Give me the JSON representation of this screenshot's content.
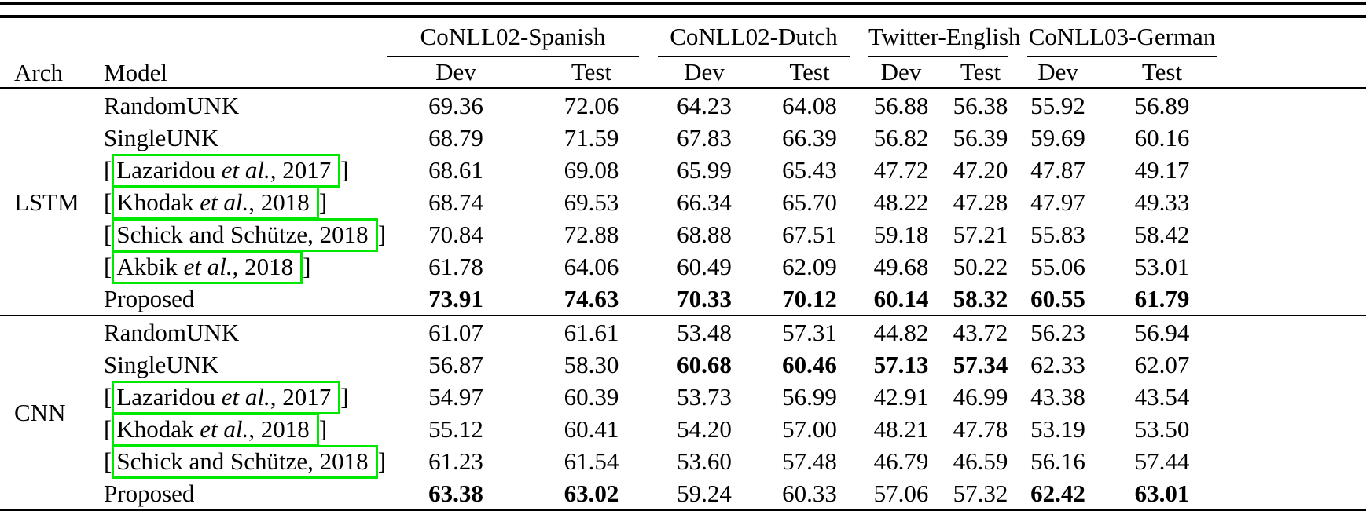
{
  "table": {
    "columns": {
      "arch": "Arch",
      "model": "Model"
    },
    "brackets": {
      "open": "[",
      "close": "]"
    },
    "citation_box_color": "#00e800",
    "groups": [
      {
        "label": "CoNLL02-Spanish",
        "dev": "Dev",
        "test": "Test"
      },
      {
        "label": "CoNLL02-Dutch",
        "dev": "Dev",
        "test": "Test"
      },
      {
        "label": "Twitter-English",
        "dev": "Dev",
        "test": "Test"
      },
      {
        "label": "CoNLL03-German",
        "dev": "Dev",
        "test": "Test"
      }
    ],
    "sections": [
      {
        "arch": "LSTM",
        "rows": [
          {
            "boxed": false,
            "segments": [
              {
                "t": "RandomUNK",
                "i": false
              }
            ],
            "values": [
              "69.36",
              "72.06",
              "64.23",
              "64.08",
              "56.88",
              "56.38",
              "55.92",
              "56.89"
            ],
            "bold": []
          },
          {
            "boxed": false,
            "segments": [
              {
                "t": "SingleUNK",
                "i": false
              }
            ],
            "values": [
              "68.79",
              "71.59",
              "67.83",
              "66.39",
              "56.82",
              "56.39",
              "59.69",
              "60.16"
            ],
            "bold": []
          },
          {
            "boxed": true,
            "segments": [
              {
                "t": "Lazaridou ",
                "i": false
              },
              {
                "t": "et al.",
                "i": true
              },
              {
                "t": ", 2017",
                "i": false
              }
            ],
            "values": [
              "68.61",
              "69.08",
              "65.99",
              "65.43",
              "47.72",
              "47.20",
              "47.87",
              "49.17"
            ],
            "bold": []
          },
          {
            "boxed": true,
            "segments": [
              {
                "t": "Khodak ",
                "i": false
              },
              {
                "t": "et al.",
                "i": true
              },
              {
                "t": ", 2018",
                "i": false
              }
            ],
            "values": [
              "68.74",
              "69.53",
              "66.34",
              "65.70",
              "48.22",
              "47.28",
              "47.97",
              "49.33"
            ],
            "bold": []
          },
          {
            "boxed": true,
            "segments": [
              {
                "t": "Schick and Schütze, 2018",
                "i": false
              }
            ],
            "values": [
              "70.84",
              "72.88",
              "68.88",
              "67.51",
              "59.18",
              "57.21",
              "55.83",
              "58.42"
            ],
            "bold": []
          },
          {
            "boxed": true,
            "segments": [
              {
                "t": "Akbik ",
                "i": false
              },
              {
                "t": "et al.",
                "i": true
              },
              {
                "t": ", 2018",
                "i": false
              }
            ],
            "values": [
              "61.78",
              "64.06",
              "60.49",
              "62.09",
              "49.68",
              "50.22",
              "55.06",
              "53.01"
            ],
            "bold": []
          },
          {
            "boxed": false,
            "segments": [
              {
                "t": "Proposed",
                "i": false
              }
            ],
            "values": [
              "73.91",
              "74.63",
              "70.33",
              "70.12",
              "60.14",
              "58.32",
              "60.55",
              "61.79"
            ],
            "bold": [
              0,
              1,
              2,
              3,
              4,
              5,
              6,
              7
            ]
          }
        ]
      },
      {
        "arch": "CNN",
        "rows": [
          {
            "boxed": false,
            "segments": [
              {
                "t": "RandomUNK",
                "i": false
              }
            ],
            "values": [
              "61.07",
              "61.61",
              "53.48",
              "57.31",
              "44.82",
              "43.72",
              "56.23",
              "56.94"
            ],
            "bold": []
          },
          {
            "boxed": false,
            "segments": [
              {
                "t": "SingleUNK",
                "i": false
              }
            ],
            "values": [
              "56.87",
              "58.30",
              "60.68",
              "60.46",
              "57.13",
              "57.34",
              "62.33",
              "62.07"
            ],
            "bold": [
              2,
              3,
              4,
              5
            ]
          },
          {
            "boxed": true,
            "segments": [
              {
                "t": "Lazaridou ",
                "i": false
              },
              {
                "t": "et al.",
                "i": true
              },
              {
                "t": ", 2017",
                "i": false
              }
            ],
            "values": [
              "54.97",
              "60.39",
              "53.73",
              "56.99",
              "42.91",
              "46.99",
              "43.38",
              "43.54"
            ],
            "bold": []
          },
          {
            "boxed": true,
            "segments": [
              {
                "t": "Khodak ",
                "i": false
              },
              {
                "t": "et al.",
                "i": true
              },
              {
                "t": ", 2018",
                "i": false
              }
            ],
            "values": [
              "55.12",
              "60.41",
              "54.20",
              "57.00",
              "48.21",
              "47.78",
              "53.19",
              "53.50"
            ],
            "bold": []
          },
          {
            "boxed": true,
            "segments": [
              {
                "t": "Schick and Schütze, 2018",
                "i": false
              }
            ],
            "values": [
              "61.23",
              "61.54",
              "53.60",
              "57.48",
              "46.79",
              "46.59",
              "56.16",
              "57.44"
            ],
            "bold": []
          },
          {
            "boxed": false,
            "segments": [
              {
                "t": "Proposed",
                "i": false
              }
            ],
            "values": [
              "63.38",
              "63.02",
              "59.24",
              "60.33",
              "57.06",
              "57.32",
              "62.42",
              "63.01"
            ],
            "bold": [
              0,
              1,
              6,
              7
            ]
          }
        ]
      }
    ]
  }
}
